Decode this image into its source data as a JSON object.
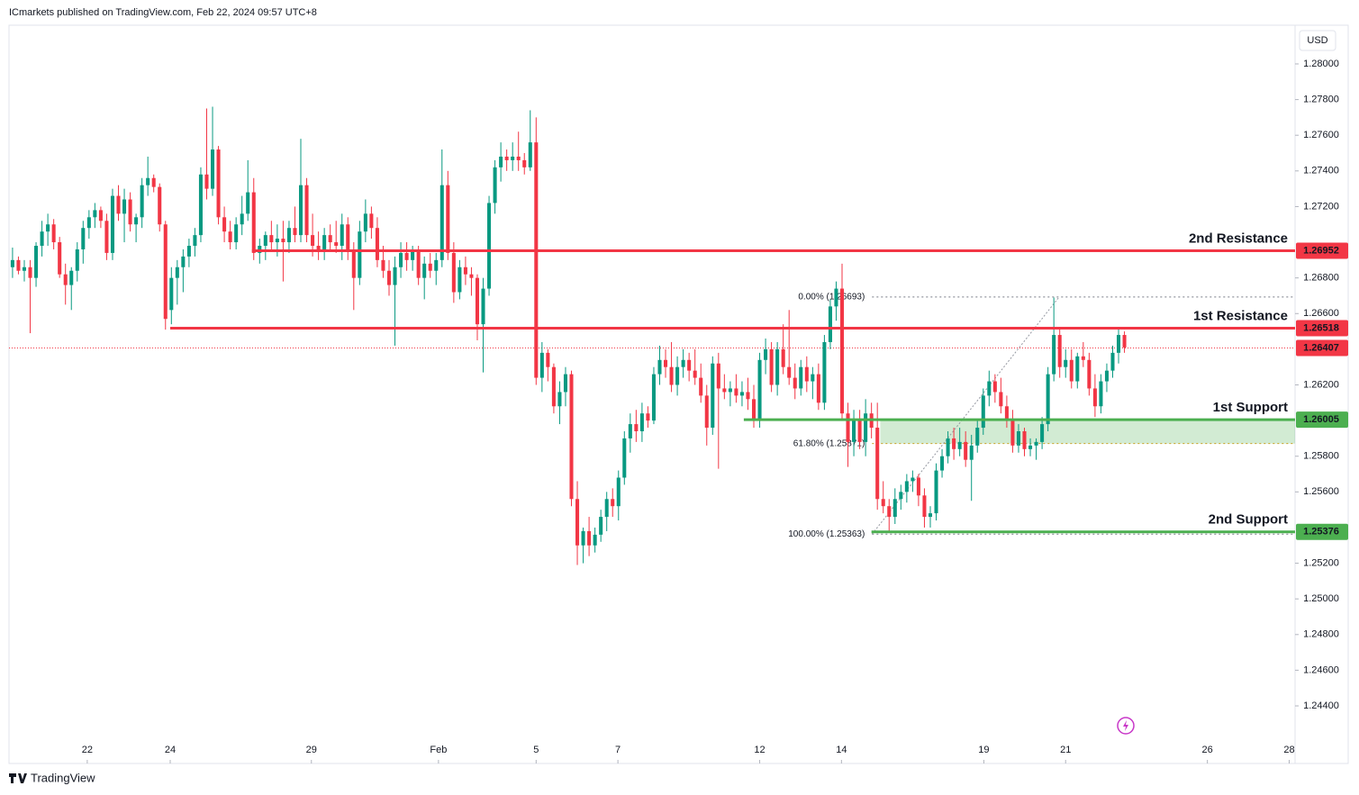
{
  "header": "ICmarkets published on TradingView.com, Feb 22, 2024 09:57 UTC+8",
  "footer": "TradingView",
  "chart_data": {
    "type": "candlestick",
    "currency": "USD",
    "up_color": "#089981",
    "down_color": "#f23645",
    "ylim": [
      1.24077,
      1.28217
    ],
    "xlim": [
      -0.6,
      218
    ],
    "grid": false,
    "yticks": [
      {
        "value": 1.244,
        "label": "1.24400"
      },
      {
        "value": 1.246,
        "label": "1.24600"
      },
      {
        "value": 1.248,
        "label": "1.24800"
      },
      {
        "value": 1.25,
        "label": "1.25000"
      },
      {
        "value": 1.252,
        "label": "1.25200"
      },
      {
        "value": 1.256,
        "label": "1.25600"
      },
      {
        "value": 1.258,
        "label": "1.25800"
      },
      {
        "value": 1.262,
        "label": "1.26200"
      },
      {
        "value": 1.266,
        "label": "1.26600"
      },
      {
        "value": 1.268,
        "label": "1.26800"
      },
      {
        "value": 1.272,
        "label": "1.27200"
      },
      {
        "value": 1.274,
        "label": "1.27400"
      },
      {
        "value": 1.276,
        "label": "1.27600"
      },
      {
        "value": 1.278,
        "label": "1.27800"
      },
      {
        "value": 1.28,
        "label": "1.28000"
      }
    ],
    "xticks": [
      {
        "value": 12.7,
        "label": "22"
      },
      {
        "value": 26.8,
        "label": "24"
      },
      {
        "value": 50.8,
        "label": "29"
      },
      {
        "value": 72.4,
        "label": "Feb"
      },
      {
        "value": 89,
        "label": "5"
      },
      {
        "value": 102.9,
        "label": "7"
      },
      {
        "value": 127,
        "label": "12"
      },
      {
        "value": 140.9,
        "label": "14"
      },
      {
        "value": 165.1,
        "label": "19"
      },
      {
        "value": 179,
        "label": "21"
      },
      {
        "value": 203.1,
        "label": "26"
      },
      {
        "value": 217,
        "label": "28"
      }
    ],
    "candles": [
      [
        1.2686,
        1.2697,
        1.268,
        1.269
      ],
      [
        1.269,
        1.2692,
        1.2682,
        1.2684
      ],
      [
        1.2684,
        1.269,
        1.2678,
        1.2686
      ],
      [
        1.2686,
        1.269,
        1.2649,
        1.268
      ],
      [
        1.268,
        1.27,
        1.2675,
        1.2698
      ],
      [
        1.2698,
        1.2712,
        1.2692,
        1.2706
      ],
      [
        1.2706,
        1.2716,
        1.2698,
        1.271
      ],
      [
        1.271,
        1.2713,
        1.2696,
        1.27
      ],
      [
        1.27,
        1.2703,
        1.268,
        1.2682
      ],
      [
        1.2682,
        1.2688,
        1.2665,
        1.2676
      ],
      [
        1.2676,
        1.2686,
        1.2662,
        1.2684
      ],
      [
        1.2684,
        1.27,
        1.2678,
        1.2696
      ],
      [
        1.2696,
        1.2712,
        1.2688,
        1.2708
      ],
      [
        1.2708,
        1.2718,
        1.2702,
        1.2714
      ],
      [
        1.2714,
        1.2722,
        1.2708,
        1.2718
      ],
      [
        1.2718,
        1.272,
        1.2708,
        1.2712
      ],
      [
        1.2712,
        1.2716,
        1.269,
        1.2694
      ],
      [
        1.2694,
        1.273,
        1.269,
        1.2726
      ],
      [
        1.2726,
        1.2732,
        1.2712,
        1.2716
      ],
      [
        1.2716,
        1.273,
        1.27,
        1.2724
      ],
      [
        1.2724,
        1.2728,
        1.2706,
        1.271
      ],
      [
        1.271,
        1.2716,
        1.27,
        1.2714
      ],
      [
        1.2714,
        1.2736,
        1.2708,
        1.2732
      ],
      [
        1.2732,
        1.2748,
        1.2726,
        1.2736
      ],
      [
        1.2736,
        1.2738,
        1.2728,
        1.2731
      ],
      [
        1.2731,
        1.2733,
        1.2706,
        1.271
      ],
      [
        1.271,
        1.2712,
        1.2651,
        1.2657
      ],
      [
        1.2662,
        1.2686,
        1.2654,
        1.268
      ],
      [
        1.268,
        1.269,
        1.2665,
        1.2686
      ],
      [
        1.2686,
        1.2696,
        1.2672,
        1.2692
      ],
      [
        1.2692,
        1.2702,
        1.2686,
        1.2698
      ],
      [
        1.2698,
        1.2708,
        1.2692,
        1.2704
      ],
      [
        1.2704,
        1.2742,
        1.27,
        1.2738
      ],
      [
        1.2738,
        1.2775,
        1.2724,
        1.273
      ],
      [
        1.273,
        1.2776,
        1.2726,
        1.2752
      ],
      [
        1.2752,
        1.2754,
        1.271,
        1.2714
      ],
      [
        1.2714,
        1.272,
        1.27,
        1.2706
      ],
      [
        1.2706,
        1.2712,
        1.2696,
        1.27
      ],
      [
        1.27,
        1.2714,
        1.2696,
        1.271
      ],
      [
        1.271,
        1.2726,
        1.2704,
        1.2716
      ],
      [
        1.2716,
        1.2746,
        1.2712,
        1.2728
      ],
      [
        1.2728,
        1.2736,
        1.269,
        1.2694
      ],
      [
        1.2694,
        1.2702,
        1.2688,
        1.2698
      ],
      [
        1.2698,
        1.2706,
        1.269,
        1.2704
      ],
      [
        1.2704,
        1.2712,
        1.2696,
        1.27
      ],
      [
        1.27,
        1.271,
        1.2692,
        1.2702
      ],
      [
        1.2702,
        1.2712,
        1.2678,
        1.27
      ],
      [
        1.27,
        1.2712,
        1.2694,
        1.2708
      ],
      [
        1.2708,
        1.272,
        1.27,
        1.2704
      ],
      [
        1.2704,
        1.2758,
        1.27,
        1.2732
      ],
      [
        1.2732,
        1.2736,
        1.27,
        1.2704
      ],
      [
        1.2704,
        1.2716,
        1.2692,
        1.2698
      ],
      [
        1.2698,
        1.2706,
        1.269,
        1.2696
      ],
      [
        1.2696,
        1.2708,
        1.269,
        1.2704
      ],
      [
        1.2704,
        1.271,
        1.2696,
        1.27
      ],
      [
        1.27,
        1.2712,
        1.2694,
        1.2698
      ],
      [
        1.2698,
        1.2716,
        1.269,
        1.271
      ],
      [
        1.271,
        1.2714,
        1.269,
        1.2696
      ],
      [
        1.2696,
        1.27,
        1.2662,
        1.268
      ],
      [
        1.268,
        1.2712,
        1.2676,
        1.2706
      ],
      [
        1.2706,
        1.2724,
        1.27,
        1.2716
      ],
      [
        1.2716,
        1.272,
        1.2702,
        1.2708
      ],
      [
        1.2708,
        1.2714,
        1.2686,
        1.269
      ],
      [
        1.269,
        1.2698,
        1.268,
        1.2684
      ],
      [
        1.2684,
        1.269,
        1.267,
        1.2676
      ],
      [
        1.2676,
        1.2692,
        1.2642,
        1.2686
      ],
      [
        1.2686,
        1.27,
        1.268,
        1.2694
      ],
      [
        1.2694,
        1.27,
        1.2684,
        1.269
      ],
      [
        1.269,
        1.2698,
        1.2684,
        1.2696
      ],
      [
        1.2696,
        1.2698,
        1.2676,
        1.268
      ],
      [
        1.268,
        1.2692,
        1.2668,
        1.2688
      ],
      [
        1.2688,
        1.2694,
        1.268,
        1.2684
      ],
      [
        1.2684,
        1.2694,
        1.2676,
        1.269
      ],
      [
        1.269,
        1.2752,
        1.2686,
        1.2732
      ],
      [
        1.2732,
        1.274,
        1.269,
        1.2694
      ],
      [
        1.2694,
        1.27,
        1.2666,
        1.2672
      ],
      [
        1.2672,
        1.269,
        1.2668,
        1.2686
      ],
      [
        1.2686,
        1.2692,
        1.2676,
        1.2682
      ],
      [
        1.2682,
        1.2686,
        1.267,
        1.268
      ],
      [
        1.268,
        1.2682,
        1.2645,
        1.2654
      ],
      [
        1.2654,
        1.268,
        1.2627,
        1.2674
      ],
      [
        1.2674,
        1.2726,
        1.267,
        1.2722
      ],
      [
        1.2722,
        1.2746,
        1.2716,
        1.2742
      ],
      [
        1.2742,
        1.2756,
        1.2734,
        1.2748
      ],
      [
        1.2748,
        1.2752,
        1.274,
        1.2746
      ],
      [
        1.2746,
        1.2756,
        1.274,
        1.2748
      ],
      [
        1.2748,
        1.2762,
        1.274,
        1.2746
      ],
      [
        1.2746,
        1.275,
        1.2738,
        1.2742
      ],
      [
        1.2742,
        1.2774,
        1.274,
        1.2756
      ],
      [
        1.2756,
        1.277,
        1.262,
        1.2624
      ],
      [
        1.2624,
        1.2644,
        1.2616,
        1.2638
      ],
      [
        1.2638,
        1.264,
        1.2622,
        1.263
      ],
      [
        1.263,
        1.2632,
        1.2604,
        1.2608
      ],
      [
        1.2608,
        1.2622,
        1.2598,
        1.2616
      ],
      [
        1.2616,
        1.263,
        1.2608,
        1.2626
      ],
      [
        1.2626,
        1.2628,
        1.2552,
        1.2556
      ],
      [
        1.2556,
        1.2566,
        1.2519,
        1.253
      ],
      [
        1.253,
        1.254,
        1.252,
        1.2538
      ],
      [
        1.2538,
        1.2546,
        1.2524,
        1.253
      ],
      [
        1.253,
        1.254,
        1.2526,
        1.2536
      ],
      [
        1.2536,
        1.255,
        1.2532,
        1.2546
      ],
      [
        1.2546,
        1.256,
        1.2538,
        1.2556
      ],
      [
        1.2556,
        1.2562,
        1.2546,
        1.2552
      ],
      [
        1.2552,
        1.2572,
        1.2544,
        1.2568
      ],
      [
        1.2568,
        1.2594,
        1.2564,
        1.259
      ],
      [
        1.259,
        1.2604,
        1.2582,
        1.2598
      ],
      [
        1.2598,
        1.2606,
        1.2588,
        1.2594
      ],
      [
        1.2594,
        1.261,
        1.2588,
        1.2604
      ],
      [
        1.2604,
        1.2608,
        1.2596,
        1.26
      ],
      [
        1.26,
        1.263,
        1.2598,
        1.2626
      ],
      [
        1.2626,
        1.2642,
        1.262,
        1.2634
      ],
      [
        1.2634,
        1.264,
        1.2624,
        1.263
      ],
      [
        1.263,
        1.2644,
        1.2616,
        1.262
      ],
      [
        1.262,
        1.2636,
        1.2614,
        1.263
      ],
      [
        1.263,
        1.264,
        1.2624,
        1.2634
      ],
      [
        1.2634,
        1.2638,
        1.2622,
        1.2628
      ],
      [
        1.2628,
        1.264,
        1.262,
        1.2624
      ],
      [
        1.2624,
        1.2632,
        1.261,
        1.2614
      ],
      [
        1.2614,
        1.262,
        1.2586,
        1.2596
      ],
      [
        1.2596,
        1.2636,
        1.2592,
        1.2632
      ],
      [
        1.2632,
        1.2638,
        1.2573,
        1.2618
      ],
      [
        1.2618,
        1.2626,
        1.2612,
        1.2616
      ],
      [
        1.2616,
        1.2622,
        1.2608,
        1.2618
      ],
      [
        1.2618,
        1.2626,
        1.261,
        1.2614
      ],
      [
        1.2614,
        1.2622,
        1.2608,
        1.2616
      ],
      [
        1.2616,
        1.2624,
        1.2606,
        1.2612
      ],
      [
        1.2612,
        1.262,
        1.2596,
        1.26
      ],
      [
        1.26,
        1.2638,
        1.2596,
        1.2634
      ],
      [
        1.2634,
        1.2646,
        1.2626,
        1.264
      ],
      [
        1.264,
        1.2644,
        1.2616,
        1.262
      ],
      [
        1.262,
        1.2644,
        1.2614,
        1.264
      ],
      [
        1.264,
        1.2654,
        1.2626,
        1.263
      ],
      [
        1.263,
        1.2662,
        1.262,
        1.2624
      ],
      [
        1.2624,
        1.2632,
        1.2612,
        1.2618
      ],
      [
        1.2618,
        1.2634,
        1.2614,
        1.263
      ],
      [
        1.263,
        1.2636,
        1.2616,
        1.2622
      ],
      [
        1.2622,
        1.263,
        1.2612,
        1.2626
      ],
      [
        1.2626,
        1.2632,
        1.2606,
        1.261
      ],
      [
        1.261,
        1.2648,
        1.2606,
        1.2644
      ],
      [
        1.2644,
        1.2668,
        1.264,
        1.2664
      ],
      [
        1.2664,
        1.2678,
        1.2656,
        1.2674
      ],
      [
        1.2674,
        1.2688,
        1.26,
        1.2604
      ],
      [
        1.2604,
        1.261,
        1.2574,
        1.2588
      ],
      [
        1.2588,
        1.2606,
        1.258,
        1.26
      ],
      [
        1.26,
        1.2606,
        1.2584,
        1.2588
      ],
      [
        1.2588,
        1.2612,
        1.258,
        1.2604
      ],
      [
        1.2604,
        1.261,
        1.259,
        1.2596
      ],
      [
        1.2596,
        1.261,
        1.255,
        1.2556
      ],
      [
        1.2556,
        1.2566,
        1.2548,
        1.2552
      ],
      [
        1.2552,
        1.2556,
        1.2538,
        1.2546
      ],
      [
        1.2546,
        1.2562,
        1.2542,
        1.2556
      ],
      [
        1.2556,
        1.2564,
        1.255,
        1.256
      ],
      [
        1.256,
        1.257,
        1.2554,
        1.2566
      ],
      [
        1.2566,
        1.2572,
        1.256,
        1.2568
      ],
      [
        1.2568,
        1.257,
        1.2552,
        1.2558
      ],
      [
        1.2558,
        1.2562,
        1.254,
        1.2546
      ],
      [
        1.2546,
        1.2552,
        1.254,
        1.2548
      ],
      [
        1.2548,
        1.2576,
        1.2544,
        1.2572
      ],
      [
        1.2572,
        1.2584,
        1.2568,
        1.258
      ],
      [
        1.258,
        1.2594,
        1.2576,
        1.259
      ],
      [
        1.259,
        1.2596,
        1.2578,
        1.2584
      ],
      [
        1.2584,
        1.2596,
        1.258,
        1.2588
      ],
      [
        1.2588,
        1.2594,
        1.2574,
        1.2578
      ],
      [
        1.2578,
        1.2592,
        1.2555,
        1.2586
      ],
      [
        1.2586,
        1.26,
        1.2582,
        1.2596
      ],
      [
        1.2596,
        1.2618,
        1.2592,
        1.2614
      ],
      [
        1.2614,
        1.2628,
        1.2608,
        1.2622
      ],
      [
        1.2622,
        1.2626,
        1.261,
        1.2616
      ],
      [
        1.2616,
        1.2624,
        1.2604,
        1.2608
      ],
      [
        1.2608,
        1.2614,
        1.2596,
        1.26
      ],
      [
        1.26,
        1.2606,
        1.2582,
        1.2586
      ],
      [
        1.2586,
        1.2598,
        1.2582,
        1.2594
      ],
      [
        1.2594,
        1.2596,
        1.258,
        1.2584
      ],
      [
        1.2584,
        1.259,
        1.258,
        1.2586
      ],
      [
        1.2586,
        1.259,
        1.2578,
        1.2588
      ],
      [
        1.2588,
        1.2602,
        1.2584,
        1.2598
      ],
      [
        1.2598,
        1.263,
        1.2594,
        1.2626
      ],
      [
        1.2626,
        1.2669,
        1.2622,
        1.2648
      ],
      [
        1.2648,
        1.2652,
        1.2624,
        1.263
      ],
      [
        1.263,
        1.264,
        1.2624,
        1.2634
      ],
      [
        1.2634,
        1.264,
        1.2618,
        1.2622
      ],
      [
        1.2622,
        1.2638,
        1.2618,
        1.2636
      ],
      [
        1.2636,
        1.2644,
        1.263,
        1.2634
      ],
      [
        1.2634,
        1.2638,
        1.2614,
        1.2618
      ],
      [
        1.2618,
        1.2626,
        1.2602,
        1.2608
      ],
      [
        1.2608,
        1.2626,
        1.2604,
        1.2622
      ],
      [
        1.2622,
        1.2632,
        1.2616,
        1.2628
      ],
      [
        1.2628,
        1.2642,
        1.2624,
        1.2638
      ],
      [
        1.2638,
        1.2652,
        1.2632,
        1.2648
      ],
      [
        1.2648,
        1.265,
        1.2638,
        1.2641
      ]
    ],
    "levels": [
      {
        "name": "2nd Resistance",
        "value": 1.26952,
        "label": "1.26952",
        "color": "#f23645",
        "start": 40.7
      },
      {
        "name": "1st Resistance",
        "value": 1.26518,
        "label": "1.26518",
        "color": "#f23645",
        "start": 26.8
      },
      {
        "name": "1st Support",
        "value": 1.26005,
        "label": "1.26005",
        "color": "#4caf50",
        "start": 124.3
      },
      {
        "name": "2nd Support",
        "value": 1.25376,
        "label": "1.25376",
        "color": "#4caf50",
        "start": 146
      }
    ],
    "last_price": {
      "value": 1.26407,
      "label": "1.26407",
      "color": "#f23645"
    },
    "zone": {
      "from": 1.25871,
      "to": 1.26005,
      "start": 147.5,
      "color": "#4caf50"
    },
    "fib": [
      {
        "label": "0.00% (1.26693)",
        "value": 1.26693,
        "color": "#787b86"
      },
      {
        "label": "61.80% (1.25871)",
        "value": 1.25871,
        "color": "#c8a020"
      },
      {
        "label": "100.00% (1.25363)",
        "value": 1.25363,
        "color": "#787b86"
      }
    ],
    "fib_start": 146.1,
    "fib_end": 177.9
  }
}
